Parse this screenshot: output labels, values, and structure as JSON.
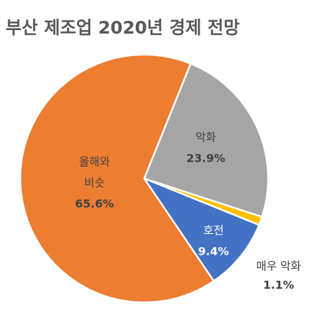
{
  "chart_data": {
    "type": "pie",
    "title": "부산 제조업 2020년 경제 전망",
    "slices": [
      {
        "label": "악화",
        "value": 23.9,
        "value_label": "23.9%",
        "color": "#a5a5a5",
        "text_color": "#404040"
      },
      {
        "label": "매우 악화",
        "value": 1.1,
        "value_label": "1.1%",
        "color": "#ffc000",
        "text_color": "#404040"
      },
      {
        "label": "호전",
        "value": 9.4,
        "value_label": "9.4%",
        "color": "#4472c4",
        "text_color": "#ffffff"
      },
      {
        "label": "올해와 비슷",
        "label_lines": [
          "올해와",
          "비슷"
        ],
        "value": 65.6,
        "value_label": "65.6%",
        "color": "#ed7d31",
        "text_color": "#404040"
      }
    ],
    "start_angle_deg": 22,
    "legend": "none"
  }
}
